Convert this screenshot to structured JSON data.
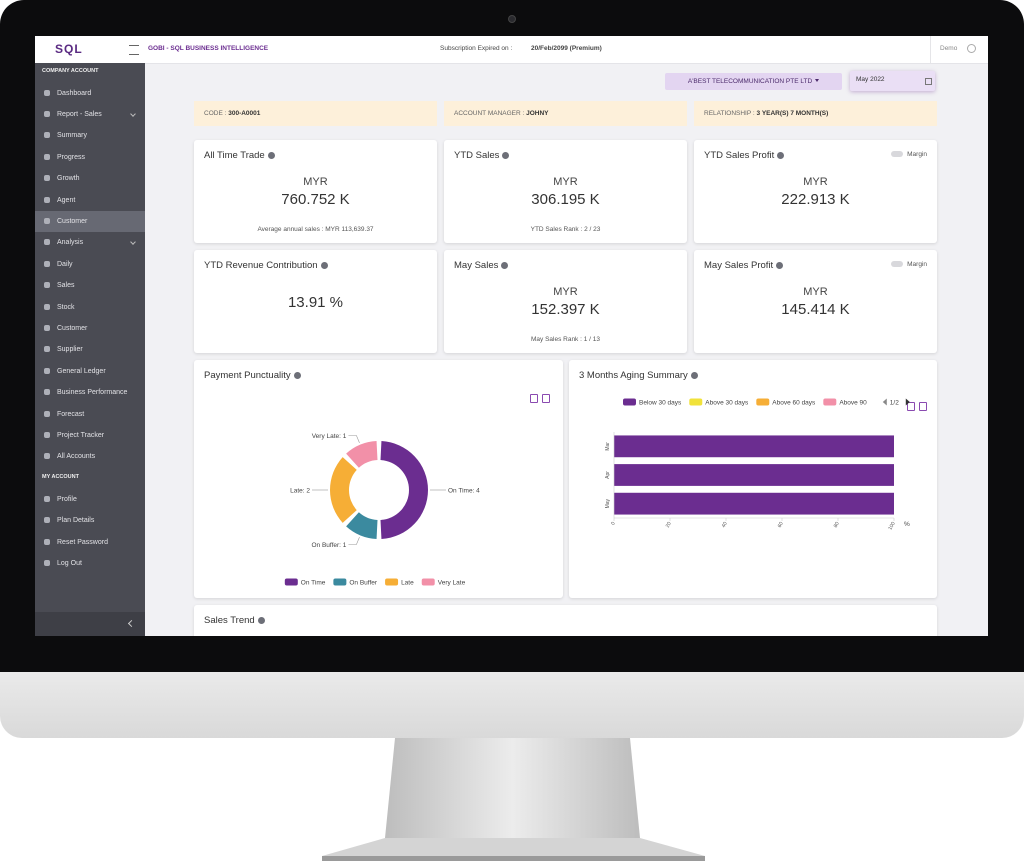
{
  "header": {
    "logo": "SQL",
    "app_name": "GOBI - SQL BUSINESS INTELLIGENCE",
    "subscription_label": "Subscription Expired on :",
    "subscription_value": "20/Feb/2099 (Premium)",
    "user": "Demo"
  },
  "sidebar": {
    "sections": [
      {
        "title": "COMPANY ACCOUNT",
        "items": [
          {
            "label": "Dashboard"
          },
          {
            "label": "Report - Sales",
            "expandable": true
          },
          {
            "label": "Summary"
          },
          {
            "label": "Progress"
          },
          {
            "label": "Growth"
          },
          {
            "label": "Agent"
          },
          {
            "label": "Customer",
            "active": true
          },
          {
            "label": "Analysis",
            "expandable": true
          },
          {
            "label": "Daily"
          },
          {
            "label": "Sales"
          },
          {
            "label": "Stock"
          },
          {
            "label": "Customer"
          },
          {
            "label": "Supplier"
          },
          {
            "label": "General Ledger"
          },
          {
            "label": "Business Performance"
          },
          {
            "label": "Forecast"
          },
          {
            "label": "Project Tracker"
          },
          {
            "label": "All Accounts"
          }
        ]
      },
      {
        "title": "MY ACCOUNT",
        "items": [
          {
            "label": "Profile"
          },
          {
            "label": "Plan Details"
          },
          {
            "label": "Reset Password"
          },
          {
            "label": "Log Out"
          }
        ]
      }
    ]
  },
  "filters": {
    "company": "A'BEST TELECOMMUNICATION PTE LTD",
    "date": "May 2022"
  },
  "info_bar": [
    {
      "label": "CODE :",
      "value": "300-A0001"
    },
    {
      "label": "ACCOUNT MANAGER :",
      "value": "JOHNY"
    },
    {
      "label": "RELATIONSHIP :",
      "value": "3 YEAR(S) 7 MONTH(S)"
    }
  ],
  "cards": [
    {
      "title": "All Time Trade",
      "currency": "MYR",
      "value": "760.752 K",
      "note": "Average annual sales : MYR 113,639.37"
    },
    {
      "title": "YTD Sales",
      "currency": "MYR",
      "value": "306.195 K",
      "note": "YTD Sales Rank : 2 / 23"
    },
    {
      "title": "YTD Sales Profit",
      "currency": "MYR",
      "value": "222.913 K",
      "toggle": "Margin"
    },
    {
      "title": "YTD Revenue Contribution",
      "value": "13.91 %"
    },
    {
      "title": "May Sales",
      "currency": "MYR",
      "value": "152.397 K",
      "note": "May Sales Rank : 1 / 13"
    },
    {
      "title": "May Sales Profit",
      "currency": "MYR",
      "value": "145.414 K",
      "toggle": "Margin"
    }
  ],
  "chart_data": [
    {
      "type": "pie",
      "title": "Payment Punctuality",
      "categories": [
        "On Time",
        "On Buffer",
        "Late",
        "Very Late"
      ],
      "values": [
        4,
        1,
        2,
        1
      ],
      "value_labels": [
        "On Time: 4",
        "On Buffer: 1",
        "Late: 2",
        "Very Late: 1"
      ],
      "colors": [
        "#6b2d90",
        "#3b8a9f",
        "#f6ae36",
        "#f290a8"
      ],
      "donut": true
    },
    {
      "type": "bar",
      "orientation": "horizontal",
      "stacked": true,
      "title": "3 Months Aging Summary",
      "categories": [
        "Mar",
        "Apr",
        "May"
      ],
      "series": [
        {
          "name": "Below 30 days",
          "color": "#6b2d90",
          "values": [
            100,
            100,
            100
          ]
        },
        {
          "name": "Above 30 days",
          "color": "#f1e23a",
          "values": [
            0,
            0,
            0
          ]
        },
        {
          "name": "Above 60 days",
          "color": "#f6ae36",
          "values": [
            0,
            0,
            0
          ]
        },
        {
          "name": "Above 90",
          "color": "#f290a8",
          "values": [
            0,
            0,
            0
          ]
        }
      ],
      "xlim": [
        0,
        100
      ],
      "xticks": [
        0,
        20,
        40,
        60,
        80,
        100
      ],
      "xlabel": "%",
      "legend_page": "1/2"
    }
  ],
  "sales_trend": {
    "title": "Sales Trend"
  }
}
